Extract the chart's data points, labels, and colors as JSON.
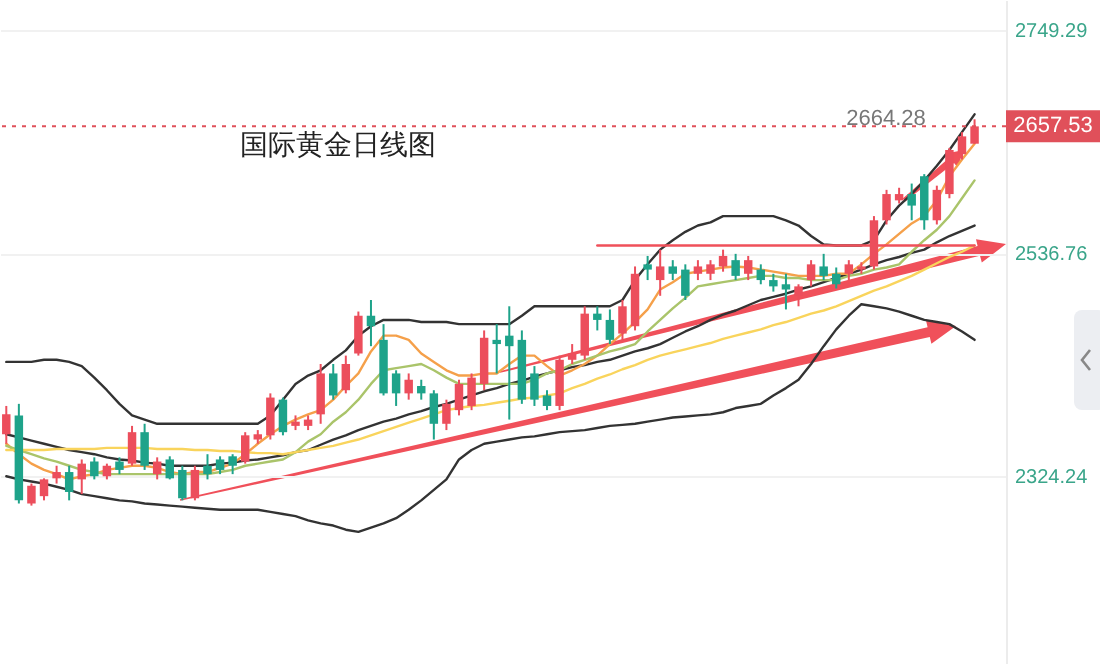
{
  "chart_data": {
    "type": "candlestick",
    "title": "国际黄金日线图",
    "categories": [
      null,
      null,
      null,
      null,
      null,
      null,
      null,
      null,
      null,
      null,
      null,
      null,
      null,
      null,
      null,
      null,
      null,
      null,
      null,
      null,
      null,
      null,
      null,
      null,
      null,
      null,
      null,
      null,
      null,
      null,
      null,
      null,
      null,
      null,
      null,
      null,
      null,
      null,
      null,
      null,
      null,
      null,
      null,
      null,
      null,
      null,
      null,
      null,
      null,
      null,
      null,
      null,
      null,
      null,
      null,
      null,
      null,
      null,
      null,
      null,
      null,
      null,
      null,
      null,
      null,
      null,
      null,
      null,
      null,
      null,
      null,
      null,
      null,
      null,
      null,
      null,
      null,
      null
    ],
    "ohlc": [
      [
        2364,
        2391,
        2355,
        2383
      ],
      [
        2382,
        2393,
        2298,
        2301
      ],
      [
        2298,
        2317,
        2296,
        2315
      ],
      [
        2305,
        2322,
        2301,
        2321
      ],
      [
        2322,
        2334,
        2317,
        2328
      ],
      [
        2328,
        2334,
        2301,
        2309
      ],
      [
        2321,
        2340,
        2307,
        2336
      ],
      [
        2338,
        2342,
        2321,
        2324
      ],
      [
        2324,
        2336,
        2321,
        2334
      ],
      [
        2338,
        2342,
        2326,
        2330
      ],
      [
        2336,
        2372,
        2334,
        2366
      ],
      [
        2366,
        2374,
        2330,
        2334
      ],
      [
        2326,
        2342,
        2321,
        2338
      ],
      [
        2340,
        2343,
        2321,
        2322
      ],
      [
        2330,
        2334,
        2301,
        2303
      ],
      [
        2303,
        2334,
        2301,
        2330
      ],
      [
        2334,
        2345,
        2321,
        2326
      ],
      [
        2340,
        2343,
        2326,
        2330
      ],
      [
        2343,
        2345,
        2326,
        2334
      ],
      [
        2338,
        2366,
        2336,
        2363
      ],
      [
        2359,
        2368,
        2355,
        2364
      ],
      [
        2363,
        2403,
        2359,
        2399
      ],
      [
        2397,
        2399,
        2363,
        2366
      ],
      [
        2372,
        2382,
        2368,
        2376
      ],
      [
        2372,
        2382,
        2368,
        2378
      ],
      [
        2383,
        2431,
        2374,
        2422
      ],
      [
        2422,
        2431,
        2397,
        2401
      ],
      [
        2406,
        2439,
        2403,
        2431
      ],
      [
        2441,
        2481,
        2439,
        2477
      ],
      [
        2477,
        2492,
        2448,
        2467
      ],
      [
        2454,
        2469,
        2401,
        2403
      ],
      [
        2422,
        2425,
        2391,
        2403
      ],
      [
        2403,
        2422,
        2397,
        2416
      ],
      [
        2410,
        2416,
        2397,
        2403
      ],
      [
        2403,
        2406,
        2359,
        2374
      ],
      [
        2374,
        2397,
        2368,
        2393
      ],
      [
        2387,
        2416,
        2382,
        2412
      ],
      [
        2391,
        2422,
        2387,
        2418
      ],
      [
        2412,
        2463,
        2406,
        2456
      ],
      [
        2454,
        2469,
        2422,
        2450
      ],
      [
        2458,
        2486,
        2378,
        2448
      ],
      [
        2454,
        2463,
        2393,
        2397
      ],
      [
        2422,
        2429,
        2391,
        2397
      ],
      [
        2401,
        2406,
        2387,
        2391
      ],
      [
        2391,
        2439,
        2387,
        2435
      ],
      [
        2435,
        2450,
        2431,
        2441
      ],
      [
        2439,
        2486,
        2435,
        2479
      ],
      [
        2479,
        2486,
        2463,
        2473
      ],
      [
        2473,
        2483,
        2450,
        2454
      ],
      [
        2460,
        2492,
        2454,
        2486
      ],
      [
        2467,
        2524,
        2463,
        2517
      ],
      [
        2526,
        2534,
        2511,
        2521
      ],
      [
        2511,
        2540,
        2496,
        2524
      ],
      [
        2524,
        2530,
        2511,
        2517
      ],
      [
        2521,
        2526,
        2492,
        2496
      ],
      [
        2517,
        2530,
        2511,
        2524
      ],
      [
        2517,
        2530,
        2511,
        2526
      ],
      [
        2524,
        2540,
        2519,
        2534
      ],
      [
        2530,
        2536,
        2511,
        2515
      ],
      [
        2517,
        2534,
        2511,
        2530
      ],
      [
        2521,
        2526,
        2507,
        2511
      ],
      [
        2511,
        2517,
        2500,
        2505
      ],
      [
        2507,
        2517,
        2483,
        2502
      ],
      [
        2496,
        2507,
        2486,
        2505
      ],
      [
        2511,
        2530,
        2505,
        2526
      ],
      [
        2524,
        2536,
        2511,
        2515
      ],
      [
        2517,
        2523,
        2503,
        2507
      ],
      [
        2517,
        2530,
        2511,
        2526
      ],
      [
        2521,
        2528,
        2517,
        2524
      ],
      [
        2524,
        2572,
        2521,
        2568
      ],
      [
        2568,
        2597,
        2564,
        2593
      ],
      [
        2587,
        2599,
        2584,
        2593
      ],
      [
        2593,
        2603,
        2568,
        2582
      ],
      [
        2610,
        2612,
        2559,
        2568
      ],
      [
        2568,
        2601,
        2564,
        2597
      ],
      [
        2593,
        2637,
        2589,
        2635
      ],
      [
        2631,
        2652,
        2626,
        2648
      ],
      [
        2641,
        2664.28,
        2641,
        2657.53
      ]
    ],
    "colors": [
      "#ec4e5c",
      "#1ea38a",
      "#ec4e5c",
      "#ec4e5c",
      "#ec4e5c",
      "#1ea38a",
      "#ec4e5c",
      "#1ea38a",
      "#ec4e5c",
      "#1ea38a",
      "#ec4e5c",
      "#1ea38a",
      "#ec4e5c",
      "#1ea38a",
      "#1ea38a",
      "#ec4e5c",
      "#1ea38a",
      "#1ea38a",
      "#1ea38a",
      "#ec4e5c",
      "#ec4e5c",
      "#ec4e5c",
      "#1ea38a",
      "#ec4e5c",
      "#ec4e5c",
      "#ec4e5c",
      "#1ea38a",
      "#ec4e5c",
      "#ec4e5c",
      "#1ea38a",
      "#1ea38a",
      "#1ea38a",
      "#ec4e5c",
      "#1ea38a",
      "#1ea38a",
      "#ec4e5c",
      "#ec4e5c",
      "#ec4e5c",
      "#ec4e5c",
      "#1ea38a",
      "#1ea38a",
      "#1ea38a",
      "#1ea38a",
      "#1ea38a",
      "#ec4e5c",
      "#ec4e5c",
      "#ec4e5c",
      "#1ea38a",
      "#1ea38a",
      "#ec4e5c",
      "#ec4e5c",
      "#1ea38a",
      "#ec4e5c",
      "#1ea38a",
      "#1ea38a",
      "#ec4e5c",
      "#ec4e5c",
      "#ec4e5c",
      "#1ea38a",
      "#ec4e5c",
      "#1ea38a",
      "#1ea38a",
      "#1ea38a",
      "#ec4e5c",
      "#ec4e5c",
      "#1ea38a",
      "#1ea38a",
      "#ec4e5c",
      "#ec4e5c",
      "#ec4e5c",
      "#ec4e5c",
      "#ec4e5c",
      "#1ea38a",
      "#1ea38a",
      "#ec4e5c",
      "#ec4e5c",
      "#ec4e5c",
      "#ec4e5c"
    ],
    "series": [
      {
        "type": "line",
        "color": "#333333",
        "values": [
          2433,
          2433,
          2433,
          2435,
          2435,
          2433,
          2429,
          2418,
          2406,
          2393,
          2382,
          2378,
          2374,
          2374,
          2374,
          2374,
          2374,
          2374,
          2374,
          2374,
          2374,
          2382,
          2397,
          2412,
          2420,
          2425,
          2435,
          2444,
          2458,
          2467,
          2473,
          2473,
          2473,
          2471,
          2471,
          2471,
          2469,
          2469,
          2469,
          2469,
          2469,
          2477,
          2486,
          2486,
          2486,
          2486,
          2486,
          2486,
          2486,
          2492,
          2511,
          2526,
          2540,
          2549,
          2557,
          2563,
          2566,
          2572,
          2572,
          2572,
          2572,
          2572,
          2568,
          2563,
          2553,
          2545,
          2544,
          2544,
          2544,
          2549,
          2568,
          2582,
          2593,
          2606,
          2620,
          2635,
          2652,
          2669
        ]
      },
      {
        "type": "line",
        "color": "#333333",
        "values": [
          2364,
          2361,
          2358,
          2355,
          2352,
          2349,
          2347,
          2345,
          2342,
          2340,
          2339,
          2337,
          2336,
          2334,
          2334,
          2334,
          2334,
          2336,
          2337,
          2339,
          2340,
          2342,
          2344,
          2347,
          2349,
          2354,
          2359,
          2363,
          2368,
          2372,
          2376,
          2379,
          2383,
          2386,
          2390,
          2393,
          2397,
          2401,
          2405,
          2408,
          2412,
          2415,
          2419,
          2422,
          2425,
          2428,
          2430,
          2433,
          2435,
          2439,
          2443,
          2446,
          2450,
          2456,
          2462,
          2467,
          2473,
          2478,
          2482,
          2487,
          2492,
          2495,
          2498,
          2502,
          2505,
          2509,
          2513,
          2517,
          2521,
          2526,
          2530,
          2533,
          2537,
          2540,
          2547,
          2553,
          2558,
          2563
        ]
      },
      {
        "type": "line",
        "color": "#333333",
        "values": [
          2324,
          2321,
          2319,
          2317,
          2314,
          2311,
          2307,
          2305,
          2303,
          2301,
          2300,
          2298,
          2297,
          2296,
          2295,
          2294,
          2293,
          2292,
          2292,
          2292,
          2292,
          2290,
          2288,
          2286,
          2282,
          2279,
          2277,
          2273,
          2271,
          2275,
          2279,
          2284,
          2292,
          2301,
          2311,
          2321,
          2340,
          2349,
          2355,
          2357,
          2359,
          2361,
          2362,
          2364,
          2366,
          2367,
          2368,
          2370,
          2372,
          2373,
          2374,
          2376,
          2378,
          2380,
          2381,
          2382,
          2383,
          2385,
          2389,
          2391,
          2393,
          2401,
          2408,
          2416,
          2431,
          2448,
          2464,
          2477,
          2488,
          2486,
          2484,
          2481,
          2477,
          2473,
          2471,
          2469,
          2462,
          2454
        ]
      },
      {
        "type": "line",
        "color": "#f5a04a",
        "values": [
          2355,
          2345,
          2336,
          2330,
          2326,
          2321,
          2324,
          2326,
          2330,
          2332,
          2334,
          2334,
          2332,
          2328,
          2326,
          2328,
          2328,
          2332,
          2336,
          2345,
          2355,
          2364,
          2372,
          2378,
          2383,
          2387,
          2397,
          2410,
          2422,
          2443,
          2458,
          2458,
          2454,
          2441,
          2433,
          2425,
          2420,
          2420,
          2422,
          2422,
          2431,
          2439,
          2439,
          2429,
          2420,
          2425,
          2431,
          2439,
          2450,
          2460,
          2471,
          2483,
          2502,
          2509,
          2517,
          2519,
          2521,
          2523,
          2524,
          2523,
          2521,
          2519,
          2517,
          2515,
          2515,
          2515,
          2517,
          2517,
          2526,
          2536,
          2545,
          2555,
          2565,
          2572,
          2587,
          2610,
          2626,
          2641
        ]
      },
      {
        "type": "line",
        "color": "#aac46a",
        "values": [
          2353,
          2349,
          2345,
          2341,
          2338,
          2334,
          2330,
          2328,
          2326,
          2326,
          2326,
          2326,
          2326,
          2326,
          2326,
          2326,
          2326,
          2328,
          2330,
          2334,
          2336,
          2338,
          2340,
          2347,
          2357,
          2364,
          2376,
          2385,
          2397,
          2412,
          2425,
          2427,
          2429,
          2431,
          2425,
          2418,
          2412,
          2412,
          2412,
          2412,
          2412,
          2412,
          2416,
          2422,
          2425,
          2431,
          2435,
          2439,
          2443,
          2446,
          2450,
          2462,
          2473,
          2484,
          2494,
          2505,
          2507,
          2509,
          2511,
          2513,
          2515,
          2515,
          2513,
          2513,
          2511,
          2511,
          2511,
          2515,
          2517,
          2521,
          2523,
          2526,
          2538,
          2549,
          2559,
          2572,
          2589,
          2606
        ]
      },
      {
        "type": "line",
        "color": "#f9d45c",
        "values": [
          2349,
          2349,
          2349,
          2349,
          2350,
          2350,
          2350,
          2350,
          2351,
          2351,
          2351,
          2351,
          2350,
          2350,
          2350,
          2349,
          2349,
          2348,
          2348,
          2347,
          2346,
          2346,
          2345,
          2347,
          2349,
          2351,
          2353,
          2356,
          2359,
          2363,
          2367,
          2371,
          2375,
          2379,
          2383,
          2387,
          2389,
          2391,
          2392,
          2394,
          2396,
          2398,
          2399,
          2401,
          2403,
          2408,
          2412,
          2417,
          2421,
          2426,
          2430,
          2435,
          2439,
          2442,
          2445,
          2448,
          2451,
          2455,
          2458,
          2461,
          2464,
          2468,
          2471,
          2475,
          2479,
          2482,
          2486,
          2491,
          2496,
          2501,
          2505,
          2510,
          2515,
          2521,
          2527,
          2533,
          2538,
          2544
        ]
      },
      {
        "type": "line",
        "color": "#f0505a",
        "values": [
          null,
          null,
          null,
          null,
          null,
          null,
          null,
          null,
          null,
          null,
          null,
          null,
          null,
          null,
          null,
          null,
          null,
          null,
          null,
          null,
          null,
          null,
          null,
          null,
          null,
          null,
          null,
          null,
          null,
          null,
          null,
          null,
          null,
          null,
          null,
          null,
          null,
          null,
          null,
          null,
          null,
          null,
          null,
          null,
          null,
          null,
          null,
          2544,
          2544,
          2544,
          2544,
          2544,
          2544,
          2544,
          2544,
          2544,
          2544,
          2544,
          2544,
          2544,
          2544,
          2544,
          2544,
          2544,
          2544,
          2544,
          2544,
          2544,
          2544,
          2544,
          2544,
          2544,
          2544,
          2544,
          2544,
          2544,
          2544,
          2544
        ]
      }
    ],
    "ylim": [
      2145,
      2778
    ],
    "yticks": [
      2324.24,
      2536.76,
      2749.29
    ],
    "grid": "y",
    "tick_labels": "y",
    "ref_lines": [
      {
        "axis": "y",
        "value": 2657.53,
        "label": "2657.53",
        "color": "#e0505a",
        "line_style": "dotted"
      }
    ],
    "annotations": [
      {
        "text": "2664.28",
        "y": 2664.28
      }
    ]
  }
}
